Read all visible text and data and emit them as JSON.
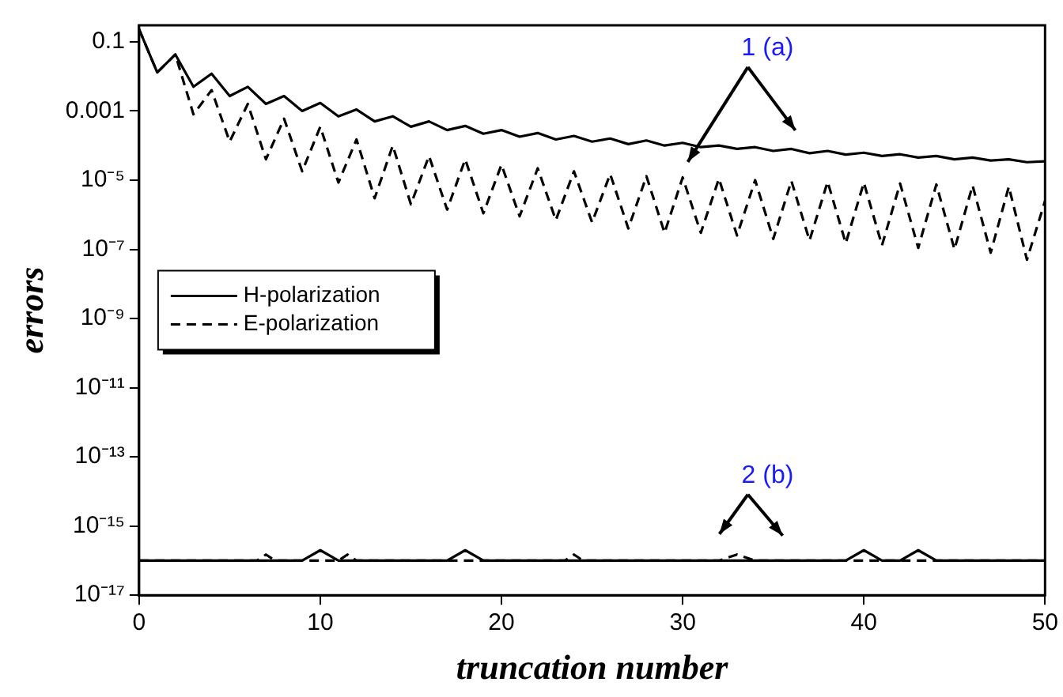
{
  "chart_data": {
    "type": "line",
    "xlabel": "truncation number",
    "ylabel": "errors",
    "log": "y",
    "xlim": [
      0,
      50
    ],
    "xticks": [
      0,
      10,
      20,
      30,
      40,
      50
    ],
    "ylim": [
      1e-17,
      0.3
    ],
    "yticks": [
      0.1,
      0.001,
      {
        "value": 1e-05,
        "label": "10⁻⁵"
      },
      {
        "value": 1e-07,
        "label": "10⁻⁷"
      },
      {
        "value": 1e-09,
        "label": "10⁻⁹"
      },
      {
        "value": 1e-11,
        "label": "10⁻¹¹"
      },
      {
        "value": 1e-13,
        "label": "10⁻¹³"
      },
      {
        "value": 1e-15,
        "label": "10⁻¹⁵"
      },
      {
        "value": 1e-17,
        "label": "10⁻¹⁷"
      }
    ],
    "grid": false,
    "legend": "left",
    "marker": "none",
    "x": [
      0,
      1,
      2,
      3,
      4,
      5,
      6,
      7,
      8,
      9,
      10,
      11,
      12,
      13,
      14,
      15,
      16,
      17,
      18,
      19,
      20,
      21,
      22,
      23,
      24,
      25,
      26,
      27,
      28,
      29,
      30,
      31,
      32,
      33,
      34,
      35,
      36,
      37,
      38,
      39,
      40,
      41,
      42,
      43,
      44,
      45,
      46,
      47,
      48,
      49,
      50
    ],
    "series": [
      {
        "name": "H-polarization",
        "color": "#000000",
        "line_style": "solid",
        "values": [
          0.23,
          0.013,
          0.043,
          0.005,
          0.012,
          0.0027,
          0.005,
          0.0016,
          0.0027,
          0.001,
          0.0017,
          0.0007,
          0.0011,
          0.0005,
          0.0007,
          0.00035,
          0.0005,
          0.00028,
          0.00037,
          0.00022,
          0.00028,
          0.00018,
          0.00023,
          0.00015,
          0.00019,
          0.00013,
          0.00016,
          0.00011,
          0.00014,
          0.0001,
          0.00012,
          9e-05,
          0.0001,
          8e-05,
          9e-05,
          7e-05,
          8e-05,
          6e-05,
          7e-05,
          5.5e-05,
          6.2e-05,
          5e-05,
          5.6e-05,
          4.5e-05,
          5e-05,
          4e-05,
          4.5e-05,
          3.7e-05,
          4e-05,
          3.3e-05,
          3.5e-05
        ]
      },
      {
        "name": "E-polarization",
        "color": "#000000",
        "line_style": "dashed",
        "values": [
          0.23,
          0.013,
          0.043,
          0.0008,
          0.004,
          0.00013,
          0.0016,
          4e-05,
          0.0006,
          1.8e-05,
          0.00035,
          8.5e-06,
          0.00015,
          3e-06,
          0.0001,
          2e-06,
          5e-05,
          1.4e-06,
          4e-05,
          1.1e-06,
          2.8e-05,
          9e-07,
          2.2e-05,
          7e-07,
          1.8e-05,
          6e-07,
          1.5e-05,
          4e-07,
          1.3e-05,
          3e-07,
          1.2e-05,
          3e-07,
          1.1e-05,
          2.5e-07,
          1e-05,
          2e-07,
          9.5e-06,
          1.8e-07,
          9e-06,
          1.5e-07,
          8.5e-06,
          1.3e-07,
          8e-06,
          1.1e-07,
          7.5e-06,
          1e-07,
          7e-06,
          8e-08,
          6.5e-06,
          5e-08,
          2.5e-06
        ]
      },
      {
        "color": "#000000",
        "line_style": "solid",
        "x": [
          0,
          9,
          10,
          11,
          17,
          18,
          19,
          39,
          40,
          41,
          42,
          43,
          44,
          50
        ],
        "values": [
          1e-16,
          1e-16,
          2e-16,
          1e-16,
          1e-16,
          2e-16,
          1e-16,
          1e-16,
          2e-16,
          1e-16,
          1e-16,
          2e-16,
          1e-16,
          1e-16
        ]
      },
      {
        "color": "#000000",
        "line_style": "dashed",
        "x": [
          0,
          6.5,
          7,
          7.5,
          11,
          11.5,
          12,
          23.5,
          24,
          24.5,
          32,
          33,
          34,
          50
        ],
        "values": [
          1e-16,
          1e-16,
          1.5e-16,
          1e-16,
          1e-16,
          1.5e-16,
          1e-16,
          1e-16,
          1.5e-16,
          1e-16,
          1e-16,
          1.5e-16,
          1e-16,
          1e-16
        ]
      }
    ],
    "annotations": [
      "1 (a)",
      "2 (b)"
    ]
  }
}
